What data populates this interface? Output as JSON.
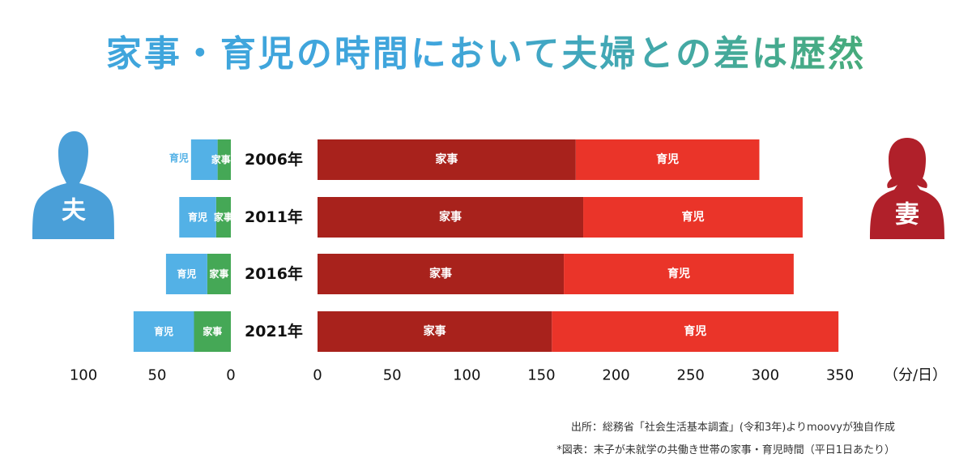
{
  "title": "家事・育児の時間において夫婦との差は歴然",
  "icons": {
    "husband": {
      "name": "man-silhouette-icon",
      "label": "夫",
      "color": "#4a9fd8"
    },
    "wife": {
      "name": "woman-silhouette-icon",
      "label": "妻",
      "color": "#b0202a"
    }
  },
  "colors": {
    "husband_housework": "#45a856",
    "husband_childcare": "#53b1e6",
    "wife_housework": "#a8221c",
    "wife_childcare": "#ea3429"
  },
  "chart_data": {
    "type": "bar",
    "orientation": "horizontal",
    "stacking": "stacked",
    "categories": [
      "2006年",
      "2011年",
      "2016年",
      "2021年"
    ],
    "husband": {
      "series": [
        {
          "name": "家事",
          "values": [
            9,
            10,
            16,
            25
          ]
        },
        {
          "name": "育児",
          "values": [
            18,
            25,
            28,
            41
          ]
        }
      ],
      "axis_ticks": [
        100,
        50,
        0
      ],
      "xlim": [
        0,
        100
      ]
    },
    "wife": {
      "series": [
        {
          "name": "家事",
          "values": [
            173,
            178,
            165,
            157
          ]
        },
        {
          "name": "育児",
          "values": [
            123,
            147,
            154,
            192
          ]
        }
      ],
      "axis_ticks": [
        0,
        50,
        100,
        150,
        200,
        250,
        300,
        350
      ],
      "xlim": [
        0,
        350
      ]
    },
    "unit_label": "（分/日）"
  },
  "source": {
    "line1": "出所：総務省「社会生活基本調査」(令和3年)よりmoovyが独自作成",
    "line2": "*図表：末子が未就学の共働き世帯の家事・育児時間（平日1日あたり）"
  }
}
